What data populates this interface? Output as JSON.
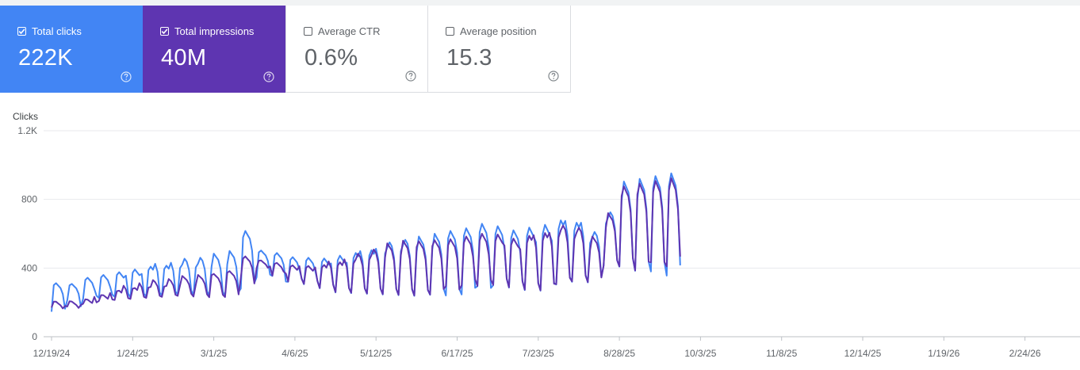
{
  "metrics": [
    {
      "label": "Total clicks",
      "value": "222K",
      "checked": true,
      "color": "#4285f4"
    },
    {
      "label": "Total impressions",
      "value": "40M",
      "checked": true,
      "color": "#5e35b1"
    },
    {
      "label": "Average CTR",
      "value": "0.6%",
      "checked": false
    },
    {
      "label": "Average position",
      "value": "15.3",
      "checked": false
    }
  ],
  "icons": {
    "checkbox": "checkbox-icon",
    "help": "help-circle-icon"
  },
  "chart_data": {
    "type": "line",
    "ylabel": "Clicks",
    "ylim": [
      0,
      1200
    ],
    "yticks": [
      "0",
      "400",
      "800",
      "1.2K"
    ],
    "ytick_values": [
      0,
      400,
      800,
      1200
    ],
    "xticks": [
      "12/19/24",
      "1/24/25",
      "3/1/25",
      "4/6/25",
      "5/12/25",
      "6/17/25",
      "7/23/25",
      "8/28/25",
      "10/3/25",
      "11/8/25",
      "12/14/25",
      "1/19/26",
      "2/24/26"
    ],
    "grid": true,
    "series": [
      {
        "color": "#4285f4",
        "start_date": "2024-12-19",
        "weekly_peak": [
          300,
          300,
          340,
          360,
          380,
          400,
          420,
          430,
          440,
          450,
          460,
          480,
          600,
          490,
          480,
          460,
          460,
          460,
          480,
          500,
          520,
          540,
          560,
          560,
          580,
          600,
          620,
          650,
          640,
          620,
          640,
          660,
          690,
          680,
          600,
          720,
          880,
          900,
          920,
          940
        ],
        "weekly_low": [
          170,
          190,
          200,
          210,
          220,
          220,
          230,
          240,
          250,
          250,
          250,
          250,
          300,
          370,
          330,
          300,
          290,
          270,
          250,
          250,
          250,
          250,
          250,
          250,
          260,
          260,
          270,
          270,
          280,
          270,
          260,
          260,
          300,
          320,
          320,
          420,
          420,
          400,
          400,
          380
        ]
      },
      {
        "color": "#5e35b1",
        "start_date": "2024-12-19",
        "weekly_peak": [
          200,
          205,
          220,
          250,
          280,
          300,
          310,
          320,
          330,
          340,
          350,
          370,
          460,
          440,
          430,
          420,
          420,
          430,
          450,
          470,
          500,
          520,
          540,
          540,
          550,
          560,
          580,
          600,
          600,
          580,
          600,
          620,
          640,
          630,
          560,
          700,
          860,
          880,
          900,
          920
        ],
        "weekly_low": [
          150,
          160,
          180,
          200,
          210,
          220,
          230,
          240,
          250,
          250,
          250,
          255,
          320,
          380,
          340,
          310,
          300,
          280,
          260,
          260,
          260,
          260,
          260,
          260,
          270,
          270,
          280,
          280,
          290,
          280,
          270,
          270,
          310,
          330,
          330,
          430,
          430,
          410,
          410,
          390
        ]
      }
    ]
  }
}
